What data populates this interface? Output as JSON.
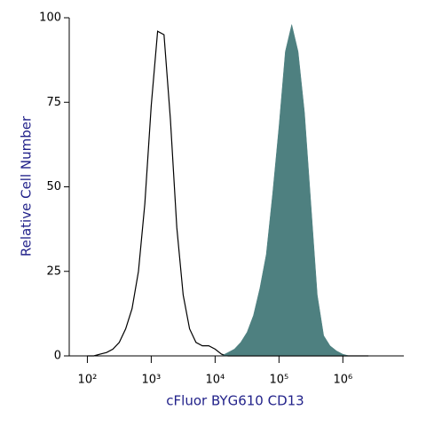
{
  "chart_data": {
    "type": "histogram-overlay",
    "x_label": "cFluor BYG610 CD13",
    "y_label": "Relative Cell Number",
    "x": [
      100,
      126,
      158,
      200,
      251,
      316,
      398,
      501,
      631,
      794,
      1000,
      1259,
      1585,
      1995,
      2512,
      3162,
      3981,
      5012,
      6310,
      7943,
      10000,
      12589,
      15849,
      19953,
      25119,
      31623,
      39811,
      50119,
      63096,
      79433,
      100000,
      125893,
      158489,
      199526,
      251189,
      316228,
      398107,
      501187,
      630957,
      794328,
      1000000,
      1258925,
      1584893,
      1995262,
      2511886
    ],
    "series": [
      {
        "color": "#000000",
        "fill": false,
        "values": [
          0,
          0,
          0.5,
          1,
          2,
          4,
          8,
          14,
          25,
          45,
          74,
          96,
          95,
          70,
          38,
          18,
          8,
          4,
          3,
          3,
          2,
          0.5,
          0,
          0,
          0,
          0,
          0,
          0,
          0,
          0,
          0,
          0,
          0,
          0,
          0,
          0,
          0,
          0,
          0,
          0,
          0,
          0,
          0,
          0,
          0
        ]
      },
      {
        "color": "#4e8080",
        "fill": true,
        "values": [
          0,
          0,
          0,
          0,
          0,
          0,
          0,
          0,
          0,
          0,
          0,
          0,
          0,
          0,
          0,
          0,
          0,
          0,
          0,
          0,
          0,
          0,
          1,
          2,
          4,
          7,
          12,
          20,
          30,
          48,
          68,
          90,
          98,
          90,
          72,
          45,
          18,
          6,
          3,
          1.5,
          0.5,
          0,
          0,
          0,
          0
        ]
      }
    ],
    "log_x": true,
    "xlim": [
      52,
      9000000
    ],
    "xticks": [
      {
        "value": 100,
        "label": "10²"
      },
      {
        "value": 1000,
        "label": "10³"
      },
      {
        "value": 10000,
        "label": "10⁴"
      },
      {
        "value": 100000,
        "label": "10⁵"
      },
      {
        "value": 1000000,
        "label": "10⁶"
      }
    ],
    "ylim": [
      0,
      100
    ],
    "yticks": [
      0,
      25,
      50,
      75,
      100
    ]
  }
}
